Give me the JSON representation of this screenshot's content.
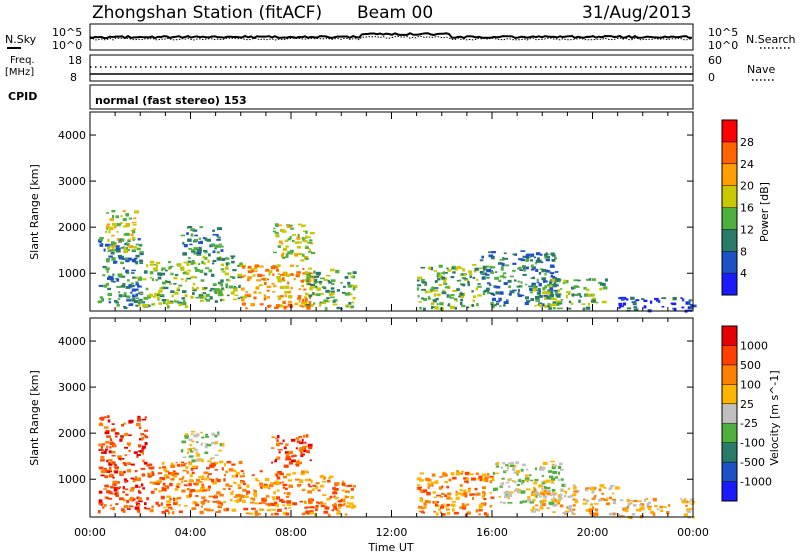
{
  "header": {
    "station": "Zhongshan Station (fitACF)",
    "beam": "Beam 00",
    "date": "31/Aug/2013"
  },
  "noise_panel": {
    "left_label": "N.Sky",
    "left_ticks": [
      "10^5",
      "10^0"
    ],
    "right_label": "N.Search",
    "right_ticks": [
      "10^5",
      "10^0"
    ]
  },
  "freq_panel": {
    "left_label_line1": "Freq.",
    "left_label_line2": "[MHz]",
    "left_ticks": [
      "18",
      "8"
    ],
    "right_label": "Nave",
    "right_ticks": [
      "60",
      "0"
    ]
  },
  "cpid": {
    "label": "CPID",
    "value": "normal (fast stereo) 153"
  },
  "chart_data": [
    {
      "type": "heatmap",
      "name": "power",
      "ylabel": "Slant Range [km]",
      "xlabel": "",
      "ylim": [
        180,
        4500
      ],
      "xlim_hours": [
        0,
        24
      ],
      "yticks": [
        "4000",
        "3000",
        "2000",
        "1000"
      ],
      "colorbar_label": "Power [dB]",
      "colorbar_ticks": [
        "28",
        "24",
        "20",
        "16",
        "12",
        "8",
        "4"
      ],
      "colors": [
        "#1a1aff",
        "#1e50c8",
        "#2a7a6a",
        "#4fb040",
        "#c8c800",
        "#ffa000",
        "#ff6400",
        "#ff0000"
      ],
      "regions": [
        {
          "t0": 0.3,
          "t1": 2.0,
          "r0": 250,
          "r1": 1800,
          "level": 2
        },
        {
          "t0": 0.6,
          "t1": 1.8,
          "r0": 1500,
          "r1": 2400,
          "level": 4
        },
        {
          "t0": 1.8,
          "t1": 3.8,
          "r0": 300,
          "r1": 1300,
          "level": 3
        },
        {
          "t0": 3.8,
          "t1": 6.0,
          "r0": 400,
          "r1": 1400,
          "level": 3
        },
        {
          "t0": 6.0,
          "t1": 8.8,
          "r0": 250,
          "r1": 1200,
          "level": 5
        },
        {
          "t0": 7.2,
          "t1": 8.8,
          "r0": 1300,
          "r1": 2100,
          "level": 4
        },
        {
          "t0": 3.6,
          "t1": 5.2,
          "r0": 1400,
          "r1": 2050,
          "level": 2
        },
        {
          "t0": 8.5,
          "t1": 10.5,
          "r0": 250,
          "r1": 1100,
          "level": 3
        },
        {
          "t0": 13.0,
          "t1": 15.5,
          "r0": 250,
          "r1": 1200,
          "level": 3
        },
        {
          "t0": 15.5,
          "t1": 18.5,
          "r0": 300,
          "r1": 1500,
          "level": 2
        },
        {
          "t0": 17.5,
          "t1": 20.5,
          "r0": 250,
          "r1": 900,
          "level": 3
        },
        {
          "t0": 21.0,
          "t1": 24.0,
          "r0": 200,
          "r1": 500,
          "level": 1
        }
      ]
    },
    {
      "type": "heatmap",
      "name": "velocity",
      "ylabel": "Slant Range [km]",
      "xlabel": "Time UT",
      "ylim": [
        180,
        4500
      ],
      "xlim_hours": [
        0,
        24
      ],
      "yticks": [
        "4000",
        "3000",
        "2000",
        "1000"
      ],
      "xticks": [
        "00:00",
        "04:00",
        "08:00",
        "12:00",
        "16:00",
        "20:00",
        "00:00"
      ],
      "colorbar_label": "Velocity [m s^-1]",
      "colorbar_ticks": [
        "1000",
        "500",
        "100",
        "25",
        "-25",
        "-100",
        "-500",
        "-1000"
      ],
      "colors": [
        "#1a1aff",
        "#1e50c8",
        "#2a7a6a",
        "#4fb040",
        "#c0c0c0",
        "#ffb400",
        "#ff8000",
        "#ff4000",
        "#e80000"
      ],
      "regions": [
        {
          "t0": 0.3,
          "t1": 2.2,
          "r0": 300,
          "r1": 2400,
          "level": 7
        },
        {
          "t0": 2.2,
          "t1": 6.0,
          "r0": 300,
          "r1": 1400,
          "level": 6
        },
        {
          "t0": 6.0,
          "t1": 9.0,
          "r0": 250,
          "r1": 1200,
          "level": 6
        },
        {
          "t0": 7.2,
          "t1": 8.8,
          "r0": 1300,
          "r1": 2000,
          "level": 7
        },
        {
          "t0": 3.6,
          "t1": 5.2,
          "r0": 1400,
          "r1": 2050,
          "level": 4
        },
        {
          "t0": 9.0,
          "t1": 10.5,
          "r0": 250,
          "r1": 1100,
          "level": 6
        },
        {
          "t0": 13.0,
          "t1": 16.0,
          "r0": 250,
          "r1": 1200,
          "level": 6
        },
        {
          "t0": 16.0,
          "t1": 18.8,
          "r0": 500,
          "r1": 1400,
          "level": 4
        },
        {
          "t0": 17.5,
          "t1": 21.0,
          "r0": 250,
          "r1": 900,
          "level": 5
        },
        {
          "t0": 21.0,
          "t1": 24.0,
          "r0": 200,
          "r1": 600,
          "level": 5
        }
      ]
    }
  ]
}
